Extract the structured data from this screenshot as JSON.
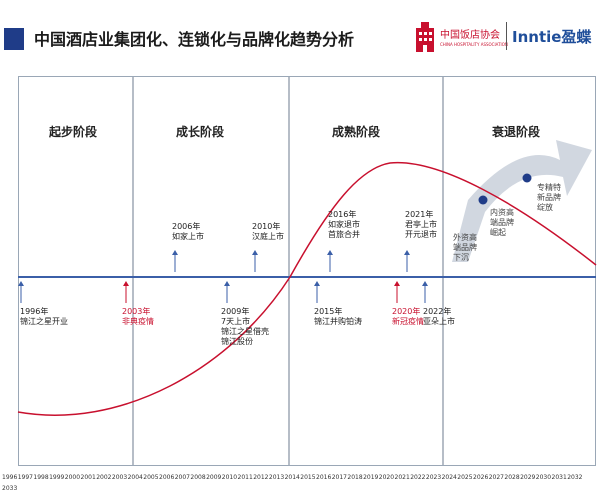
{
  "header": {
    "title": "中国酒店业集团化、连锁化与品牌化趋势分析",
    "logo_hotel_name": "中国饭店协会",
    "logo_hotel_sub": "CHINA HOSPITALITY ASSOCIATION",
    "logo_inntie": "Inntie盈蝶"
  },
  "stages": [
    "起步阶段",
    "成长阶段",
    "成熟阶段",
    "衰退阶段"
  ],
  "events_above": [
    {
      "year_text": "2006年",
      "text": "如家上市"
    },
    {
      "year_text": "2010年",
      "text": "汉庭上市"
    },
    {
      "year_text": "2016年",
      "text": "如家退市\n首旅合并"
    },
    {
      "year_text": "2021年",
      "text": "君亭上市\n开元退市"
    }
  ],
  "events_below": [
    {
      "year_text": "1996年",
      "text": "锦江之星开业"
    },
    {
      "year_text": "2003年",
      "text": "非典疫情"
    },
    {
      "year_text": "2009年",
      "text": "7天上市\n锦江之星借壳\n锦江股份"
    },
    {
      "year_text": "2015年",
      "text": "锦江并购铂涛"
    },
    {
      "year_text": "2020年",
      "text": "新冠疫情"
    },
    {
      "year_text": "2022年",
      "text": "亚朵上市"
    }
  ],
  "decline_labels": [
    {
      "text": "外资高\n端品牌\n下沉"
    },
    {
      "text": "内资高\n端品牌\n崛起"
    },
    {
      "text": "专精特\n新品牌\n绽放"
    }
  ],
  "years": [
    "1996",
    "1997",
    "1998",
    "1999",
    "2000",
    "2001",
    "2002",
    "2003",
    "2004",
    "2005",
    "2006",
    "2007",
    "2008",
    "2009",
    "2010",
    "2011",
    "2012",
    "2013",
    "2014",
    "2015",
    "2016",
    "2017",
    "2018",
    "2019",
    "2020",
    "2021",
    "2022",
    "2023",
    "2024",
    "2025",
    "2026",
    "2027",
    "2028",
    "2029",
    "2030",
    "2031",
    "2032",
    "2033"
  ],
  "colors": {
    "accent_blue": "#1f3c88",
    "curve_red": "#c8102e",
    "axis_blue": "#3b5fa8",
    "arrow_gray": "#c9d0db"
  }
}
